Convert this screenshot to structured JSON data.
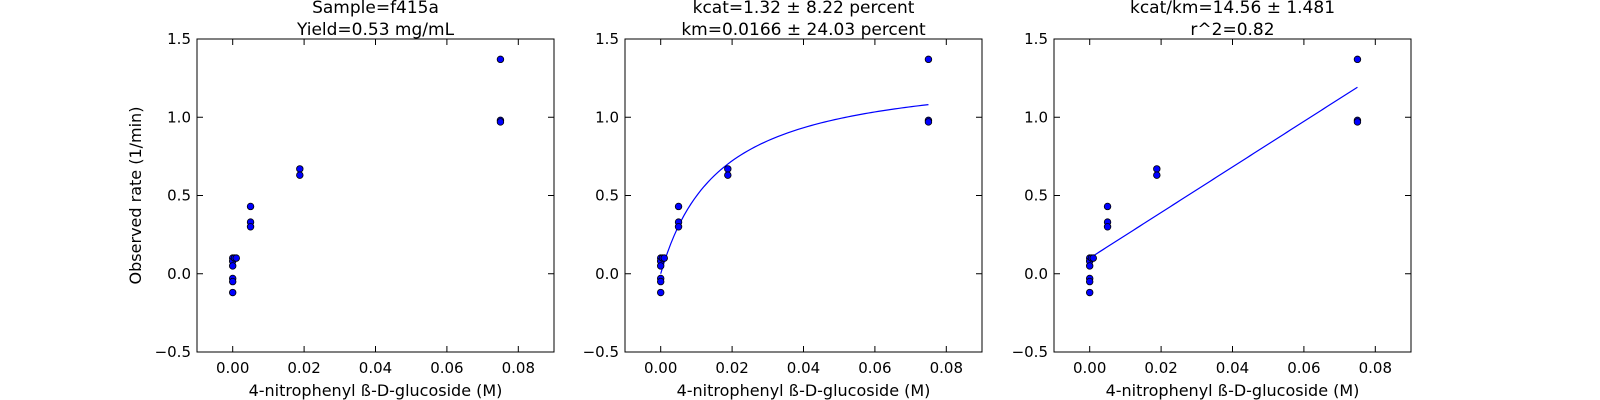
{
  "colors": {
    "marker": "#0000ff",
    "fit_line": "#0000ff",
    "axes": "#000000",
    "background": "#ffffff"
  },
  "chart_data": [
    {
      "type": "scatter",
      "title_lines": [
        "Sample=f415a",
        "Yield=0.53 mg/mL"
      ],
      "xlabel": "4-nitrophenyl ß-D-glucoside (M)",
      "ylabel": "Observed rate (1/min)",
      "xlim": [
        -0.01,
        0.09
      ],
      "ylim": [
        -0.5,
        1.5
      ],
      "xticks": [
        "0.00",
        "0.02",
        "0.04",
        "0.06",
        "0.08"
      ],
      "yticks": [
        "1.5",
        "1.0",
        "0.5",
        "0.0",
        "−0.5"
      ],
      "points": [
        [
          0.0,
          0.1
        ],
        [
          0.0,
          0.08
        ],
        [
          0.0,
          0.05
        ],
        [
          0.0,
          -0.03
        ],
        [
          0.0,
          -0.05
        ],
        [
          0.0,
          -0.12
        ],
        [
          0.0005,
          0.1
        ],
        [
          0.001,
          0.1
        ],
        [
          0.005,
          0.43
        ],
        [
          0.005,
          0.33
        ],
        [
          0.005,
          0.3
        ],
        [
          0.0188,
          0.67
        ],
        [
          0.0188,
          0.63
        ],
        [
          0.075,
          1.37
        ],
        [
          0.075,
          0.98
        ],
        [
          0.075,
          0.97
        ]
      ],
      "grid": false
    },
    {
      "type": "scatter",
      "title_lines": [
        "kcat=1.32 ± 8.22 percent",
        "km=0.0166 ± 24.03 percent"
      ],
      "xlabel": "4-nitrophenyl ß-D-glucoside (M)",
      "ylabel": "",
      "xlim": [
        -0.01,
        0.09
      ],
      "ylim": [
        -0.5,
        1.5
      ],
      "xticks": [
        "0.00",
        "0.02",
        "0.04",
        "0.06",
        "0.08"
      ],
      "yticks": [
        "1.5",
        "1.0",
        "0.5",
        "0.0",
        "−0.5"
      ],
      "points": [
        [
          0.0,
          0.1
        ],
        [
          0.0,
          0.08
        ],
        [
          0.0,
          0.05
        ],
        [
          0.0,
          -0.03
        ],
        [
          0.0,
          -0.05
        ],
        [
          0.0,
          -0.12
        ],
        [
          0.0005,
          0.1
        ],
        [
          0.001,
          0.1
        ],
        [
          0.005,
          0.43
        ],
        [
          0.005,
          0.33
        ],
        [
          0.005,
          0.3
        ],
        [
          0.0188,
          0.67
        ],
        [
          0.0188,
          0.63
        ],
        [
          0.075,
          1.37
        ],
        [
          0.075,
          0.98
        ],
        [
          0.075,
          0.97
        ]
      ],
      "fit": {
        "model": "michaelis-menten",
        "kcat": 1.32,
        "km": 0.0166,
        "x_range": [
          0.0,
          0.075
        ]
      },
      "grid": false
    },
    {
      "type": "scatter",
      "title_lines": [
        "kcat/km=14.56 ± 1.481",
        "r^2=0.82"
      ],
      "xlabel": "4-nitrophenyl ß-D-glucoside (M)",
      "ylabel": "",
      "xlim": [
        -0.01,
        0.09
      ],
      "ylim": [
        -0.5,
        1.5
      ],
      "xticks": [
        "0.00",
        "0.02",
        "0.04",
        "0.06",
        "0.08"
      ],
      "yticks": [
        "1.5",
        "1.0",
        "0.5",
        "0.0",
        "−0.5"
      ],
      "points": [
        [
          0.0,
          0.1
        ],
        [
          0.0,
          0.08
        ],
        [
          0.0,
          0.05
        ],
        [
          0.0,
          -0.03
        ],
        [
          0.0,
          -0.05
        ],
        [
          0.0,
          -0.12
        ],
        [
          0.0005,
          0.1
        ],
        [
          0.001,
          0.1
        ],
        [
          0.005,
          0.43
        ],
        [
          0.005,
          0.33
        ],
        [
          0.005,
          0.3
        ],
        [
          0.0188,
          0.67
        ],
        [
          0.0188,
          0.63
        ],
        [
          0.075,
          1.37
        ],
        [
          0.075,
          0.98
        ],
        [
          0.075,
          0.97
        ]
      ],
      "fit": {
        "model": "linear",
        "slope": 14.56,
        "intercept": 0.1,
        "x_range": [
          0.0,
          0.075
        ]
      },
      "grid": false
    }
  ]
}
